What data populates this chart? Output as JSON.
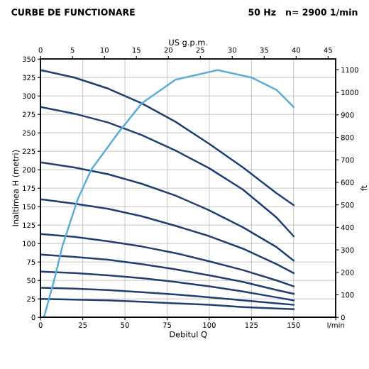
{
  "chart_data": {
    "type": "line",
    "title": "CURBE DE FUNCTIONARE",
    "subtitle": "50 Hz   n= 2900 1/min",
    "xlabel": "Debitul Q",
    "ylabel": "Inaltimea H (metri)",
    "y2label": "ft",
    "x2label": "US g.p.m.",
    "x": [
      0,
      20,
      40,
      60,
      80,
      100,
      120,
      140,
      150
    ],
    "series": [
      {
        "color": "#1f3f73",
        "values": [
          335,
          325,
          310,
          290,
          265,
          235,
          203,
          168,
          152
        ]
      },
      {
        "color": "#1f3f73",
        "values": [
          285,
          276,
          264,
          247,
          226,
          202,
          173,
          135,
          110
        ]
      },
      {
        "color": "#1f3f73",
        "values": [
          210,
          203,
          194,
          181,
          165,
          145,
          122,
          95,
          77
        ]
      },
      {
        "color": "#1f3f73",
        "values": [
          160,
          154,
          147,
          137,
          124,
          110,
          93,
          72,
          60
        ]
      },
      {
        "color": "#1f3f73",
        "values": [
          113,
          109,
          103,
          96,
          87,
          76,
          64,
          50,
          42
        ]
      },
      {
        "color": "#1f3f73",
        "values": [
          85,
          82,
          78,
          72,
          65,
          57,
          48,
          37,
          32
        ]
      },
      {
        "color": "#1f3f73",
        "values": [
          62,
          60,
          57,
          53,
          48,
          42,
          35,
          27,
          23
        ]
      },
      {
        "color": "#1f3f73",
        "values": [
          40,
          39,
          37,
          34,
          31,
          27,
          23,
          19,
          17
        ]
      },
      {
        "color": "#1f3f73",
        "values": [
          25,
          24,
          23,
          21,
          19,
          17,
          14,
          12,
          11
        ]
      },
      {
        "color": "#5aaed6",
        "x": [
          2,
          8,
          13,
          22,
          30,
          38,
          46,
          60,
          80,
          105,
          125,
          140,
          150
        ],
        "values": [
          0,
          50,
          97,
          160,
          200,
          225,
          250,
          290,
          322,
          335,
          325,
          308,
          285
        ]
      }
    ],
    "xlim": [
      0,
      175
    ],
    "xticks": [
      0,
      25,
      50,
      75,
      100,
      125,
      150,
      {
        "value": 175,
        "label": "l/min"
      }
    ],
    "ylim": [
      0,
      350
    ],
    "yticks": [
      0,
      25,
      50,
      75,
      100,
      125,
      150,
      175,
      200,
      225,
      250,
      275,
      300,
      325,
      350
    ],
    "y2lim": [
      0,
      1148
    ],
    "y2ticks": [
      0,
      100,
      200,
      300,
      400,
      500,
      600,
      700,
      800,
      900,
      1000,
      1100
    ],
    "x2lim": [
      0,
      46.2
    ],
    "x2ticks": [
      0,
      5,
      10,
      15,
      20,
      25,
      30,
      35,
      40,
      45
    ],
    "grid": true,
    "legend": false,
    "line_style": "solid",
    "marker": "none"
  }
}
